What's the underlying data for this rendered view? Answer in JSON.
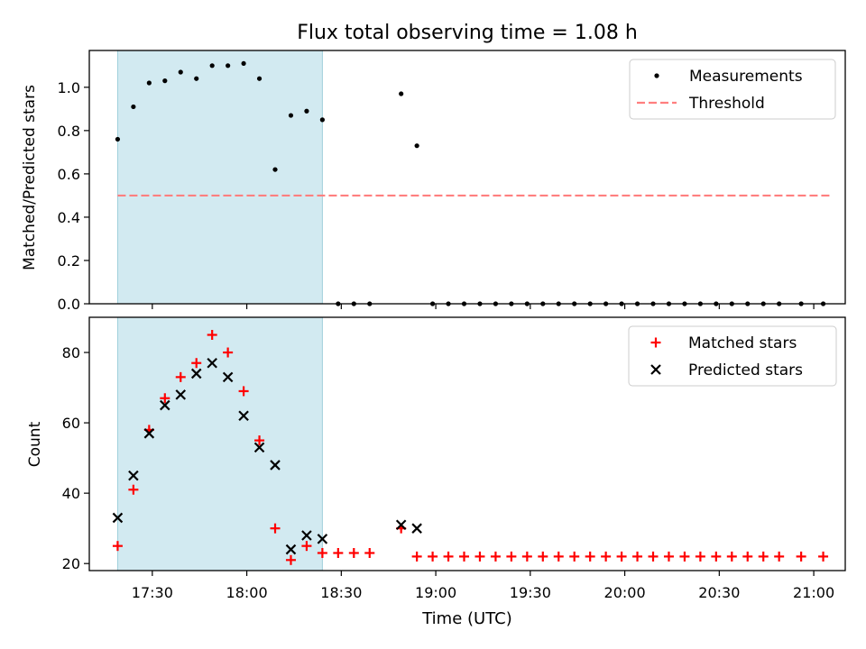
{
  "figure": {
    "title": "Flux total observing time = 1.08 h",
    "xlabel": "Time (UTC)",
    "x_ticks": [
      "17:30",
      "18:00",
      "18:30",
      "19:00",
      "19:30",
      "20:00",
      "20:30",
      "21:00"
    ],
    "colors": {
      "shade": "#add8e6",
      "threshold": "#ff7f7f",
      "matched": "#ff0000",
      "predicted": "#000000",
      "measurement": "#000000"
    }
  },
  "chart_data": [
    {
      "type": "scatter",
      "ylabel": "Matched/Predicted stars",
      "ylim": [
        0,
        1.17
      ],
      "y_ticks": [
        "0.0",
        "0.2",
        "0.4",
        "0.6",
        "0.8",
        "1.0"
      ],
      "xlim": [
        "17:10",
        "21:10"
      ],
      "shaded_span": [
        "17:19",
        "18:24"
      ],
      "legend": {
        "position": "top-right",
        "entries": [
          "Measurements",
          "Threshold"
        ]
      },
      "threshold": {
        "name": "Threshold",
        "style": "dashed",
        "x": [
          "17:19",
          "21:06"
        ],
        "y": 0.5
      },
      "series": [
        {
          "name": "Measurements",
          "marker": "dot",
          "x": [
            "17:19",
            "17:24",
            "17:29",
            "17:34",
            "17:39",
            "17:44",
            "17:49",
            "17:54",
            "17:59",
            "18:04",
            "18:09",
            "18:14",
            "18:19",
            "18:24",
            "18:29",
            "18:34",
            "18:39",
            "18:49",
            "18:54",
            "18:59",
            "19:04",
            "19:09",
            "19:14",
            "19:19",
            "19:24",
            "19:29",
            "19:34",
            "19:39",
            "19:44",
            "19:49",
            "19:54",
            "19:59",
            "20:04",
            "20:09",
            "20:14",
            "20:19",
            "20:24",
            "20:29",
            "20:34",
            "20:39",
            "20:44",
            "20:49",
            "20:56",
            "21:03"
          ],
          "y": [
            0.76,
            0.91,
            1.02,
            1.03,
            1.07,
            1.04,
            1.1,
            1.1,
            1.11,
            1.04,
            0.62,
            0.87,
            0.89,
            0.85,
            0.0,
            0.0,
            0.0,
            0.97,
            0.73,
            0.0,
            0.0,
            0.0,
            0.0,
            0.0,
            0.0,
            0.0,
            0.0,
            0.0,
            0.0,
            0.0,
            0.0,
            0.0,
            0.0,
            0.0,
            0.0,
            0.0,
            0.0,
            0.0,
            0.0,
            0.0,
            0.0,
            0.0,
            0.0,
            0.0
          ]
        }
      ]
    },
    {
      "type": "scatter",
      "ylabel": "Count",
      "ylim": [
        18,
        90
      ],
      "y_ticks": [
        "20",
        "40",
        "60",
        "80"
      ],
      "xlim": [
        "17:10",
        "21:10"
      ],
      "shaded_span": [
        "17:19",
        "18:24"
      ],
      "legend": {
        "position": "top-right",
        "entries": [
          "Matched stars",
          "Predicted stars"
        ]
      },
      "series": [
        {
          "name": "Matched stars",
          "marker": "plus",
          "x": [
            "17:19",
            "17:24",
            "17:29",
            "17:34",
            "17:39",
            "17:44",
            "17:49",
            "17:54",
            "17:59",
            "18:04",
            "18:09",
            "18:14",
            "18:19",
            "18:24",
            "18:29",
            "18:34",
            "18:39",
            "18:49",
            "18:54",
            "18:59",
            "19:04",
            "19:09",
            "19:14",
            "19:19",
            "19:24",
            "19:29",
            "19:34",
            "19:39",
            "19:44",
            "19:49",
            "19:54",
            "19:59",
            "20:04",
            "20:09",
            "20:14",
            "20:19",
            "20:24",
            "20:29",
            "20:34",
            "20:39",
            "20:44",
            "20:49",
            "20:56",
            "21:03"
          ],
          "y": [
            25,
            41,
            58,
            67,
            73,
            77,
            85,
            80,
            69,
            55,
            30,
            21,
            25,
            23,
            23,
            23,
            23,
            30,
            22,
            22,
            22,
            22,
            22,
            22,
            22,
            22,
            22,
            22,
            22,
            22,
            22,
            22,
            22,
            22,
            22,
            22,
            22,
            22,
            22,
            22,
            22,
            22,
            22,
            22
          ]
        },
        {
          "name": "Predicted stars",
          "marker": "x",
          "x": [
            "17:19",
            "17:24",
            "17:29",
            "17:34",
            "17:39",
            "17:44",
            "17:49",
            "17:54",
            "17:59",
            "18:04",
            "18:09",
            "18:14",
            "18:19",
            "18:24",
            "18:49",
            "18:54"
          ],
          "y": [
            33,
            45,
            57,
            65,
            68,
            74,
            77,
            73,
            62,
            53,
            48,
            24,
            28,
            27,
            31,
            30
          ]
        }
      ]
    }
  ]
}
